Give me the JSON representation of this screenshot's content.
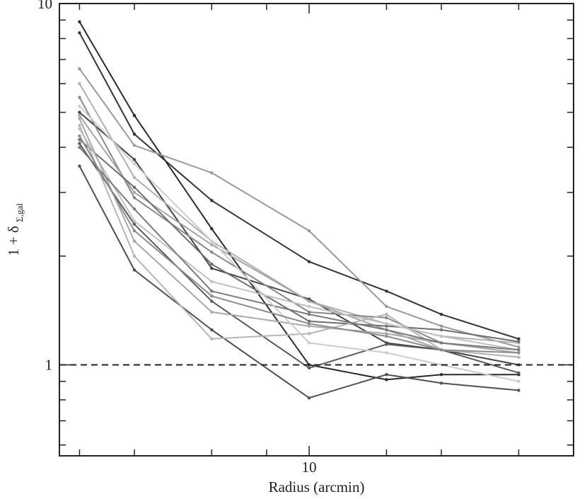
{
  "chart_data": {
    "type": "line",
    "xlabel": "Radius (arcmin)",
    "ylabel_main": "1 + δ",
    "ylabel_sub": "Σ,gal",
    "x_scale": "log",
    "y_scale": "log",
    "xlim": [
      2.7,
      40
    ],
    "ylim": [
      0.56,
      10
    ],
    "x_tick_labels": [
      {
        "value": 10,
        "label": "10"
      }
    ],
    "y_tick_labels": [
      {
        "value": 1,
        "label": "1"
      },
      {
        "value": 10,
        "label": "10"
      }
    ],
    "x_major_ticks": [
      3,
      4,
      6,
      8,
      10,
      15,
      20,
      30
    ],
    "y_minor_ticks": [
      0.6,
      0.7,
      0.8,
      0.9,
      2,
      3,
      4,
      5,
      6,
      7,
      8,
      9
    ],
    "reference_line": {
      "y": 1,
      "style": "dashed"
    },
    "grid": false,
    "legend": "none",
    "x": [
      3,
      4,
      6,
      10,
      15,
      20,
      30
    ],
    "series": [
      {
        "color": "#2a2a2a",
        "values": [
          8.9,
          4.9,
          2.38,
          1.0,
          0.91,
          0.94,
          0.94
        ]
      },
      {
        "color": "#333333",
        "values": [
          8.3,
          4.35,
          2.85,
          1.93,
          1.6,
          1.38,
          1.18
        ]
      },
      {
        "color": "#505050",
        "values": [
          3.55,
          1.83,
          1.25,
          0.81,
          0.94,
          0.89,
          0.85
        ]
      },
      {
        "color": "#454545",
        "values": [
          5.0,
          3.7,
          1.85,
          1.52,
          1.15,
          1.1,
          1.0
        ]
      },
      {
        "color": "#5a5a5a",
        "values": [
          4.1,
          2.45,
          1.5,
          0.98,
          1.14,
          1.1,
          0.95
        ]
      },
      {
        "color": "#9a9a9a",
        "values": [
          6.6,
          4.05,
          3.4,
          2.35,
          1.45,
          1.28,
          1.12
        ]
      },
      {
        "color": "#b0b0b0",
        "values": [
          6.0,
          3.3,
          2.2,
          1.5,
          1.3,
          1.2,
          1.15
        ]
      },
      {
        "color": "#888888",
        "values": [
          5.5,
          2.9,
          2.05,
          1.4,
          1.35,
          1.15,
          1.1
        ]
      },
      {
        "color": "#a5a5a5",
        "values": [
          4.9,
          3.0,
          2.15,
          1.5,
          1.25,
          1.1,
          1.05
        ]
      },
      {
        "color": "#6e6e6e",
        "values": [
          4.2,
          3.1,
          1.9,
          1.32,
          1.28,
          1.25,
          1.16
        ]
      },
      {
        "color": "#c0c0c0",
        "values": [
          4.5,
          2.5,
          1.7,
          1.45,
          1.3,
          1.2,
          1.1
        ]
      },
      {
        "color": "#a8a8a8",
        "values": [
          4.8,
          2.2,
          1.4,
          1.28,
          1.22,
          1.15,
          1.08
        ]
      },
      {
        "color": "#b5b5b5",
        "values": [
          4.6,
          2.0,
          1.18,
          1.22,
          1.38,
          1.1,
          1.05
        ]
      },
      {
        "color": "#7a7a7a",
        "values": [
          4.0,
          2.7,
          1.6,
          1.38,
          1.25,
          1.15,
          1.1
        ]
      },
      {
        "color": "#cccccc",
        "values": [
          5.2,
          3.6,
          2.2,
          1.15,
          1.08,
          1.0,
          0.9
        ]
      },
      {
        "color": "#8c8c8c",
        "values": [
          4.3,
          2.35,
          1.55,
          1.3,
          1.2,
          1.1,
          1.08
        ]
      }
    ]
  }
}
